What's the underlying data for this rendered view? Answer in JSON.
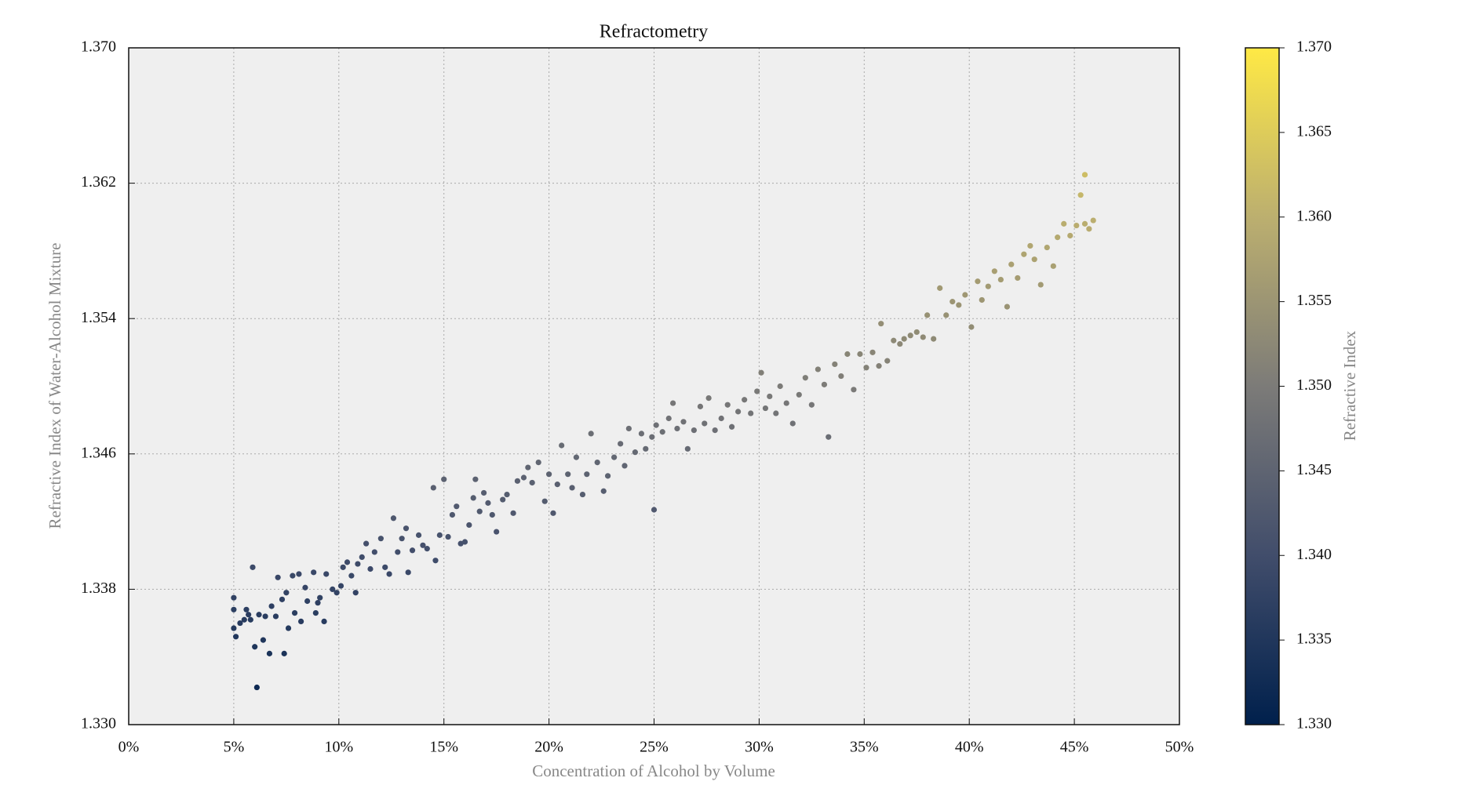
{
  "chart_data": {
    "type": "scatter",
    "title": "Refractometry",
    "x_label": "Concentration of Alcohol by Volume",
    "y_label": "Refractive Index of Water-Alcohol Mixture",
    "colorbar_label": "Refractive Index",
    "colormap": "cividis",
    "color_by": "y",
    "clim": [
      1.33,
      1.37
    ],
    "grid": true,
    "xlim": [
      0,
      50
    ],
    "ylim": [
      1.33,
      1.37
    ],
    "xticks": [
      {
        "value": 0,
        "label": "0%"
      },
      {
        "value": 5,
        "label": "5%"
      },
      {
        "value": 10,
        "label": "10%"
      },
      {
        "value": 15,
        "label": "15%"
      },
      {
        "value": 20,
        "label": "20%"
      },
      {
        "value": 25,
        "label": "25%"
      },
      {
        "value": 30,
        "label": "30%"
      },
      {
        "value": 35,
        "label": "35%"
      },
      {
        "value": 40,
        "label": "40%"
      },
      {
        "value": 45,
        "label": "45%"
      },
      {
        "value": 50,
        "label": "50%"
      }
    ],
    "yticks": [
      {
        "value": 1.33,
        "label": "1.330"
      },
      {
        "value": 1.338,
        "label": "1.338"
      },
      {
        "value": 1.346,
        "label": "1.346"
      },
      {
        "value": 1.354,
        "label": "1.354"
      },
      {
        "value": 1.362,
        "label": "1.362"
      },
      {
        "value": 1.37,
        "label": "1.370"
      }
    ],
    "cticks": [
      {
        "value": 1.33,
        "label": "1.330"
      },
      {
        "value": 1.335,
        "label": "1.335"
      },
      {
        "value": 1.34,
        "label": "1.340"
      },
      {
        "value": 1.345,
        "label": "1.345"
      },
      {
        "value": 1.35,
        "label": "1.350"
      },
      {
        "value": 1.355,
        "label": "1.355"
      },
      {
        "value": 1.36,
        "label": "1.360"
      },
      {
        "value": 1.365,
        "label": "1.365"
      },
      {
        "value": 1.37,
        "label": "1.370"
      }
    ],
    "x": [
      5.0,
      5.0,
      5.0,
      5.1,
      5.3,
      5.5,
      5.6,
      5.7,
      5.8,
      5.9,
      6.0,
      6.1,
      6.2,
      6.4,
      6.5,
      6.7,
      6.8,
      7.0,
      7.1,
      7.3,
      7.4,
      7.5,
      7.6,
      7.8,
      7.9,
      8.1,
      8.2,
      8.4,
      8.5,
      8.8,
      8.9,
      9.0,
      9.1,
      9.3,
      9.4,
      9.7,
      9.9,
      10.1,
      10.2,
      10.4,
      10.6,
      10.8,
      10.9,
      11.1,
      11.3,
      11.5,
      11.7,
      12.0,
      12.2,
      12.4,
      12.6,
      12.8,
      13.0,
      13.2,
      13.3,
      13.5,
      13.8,
      14.0,
      14.2,
      14.5,
      14.6,
      14.8,
      15.0,
      15.2,
      15.4,
      15.6,
      15.8,
      16.0,
      16.2,
      16.4,
      16.5,
      16.7,
      16.9,
      17.1,
      17.3,
      17.5,
      17.8,
      18.0,
      18.3,
      18.5,
      18.8,
      19.0,
      19.2,
      19.5,
      19.8,
      20.0,
      20.2,
      20.4,
      20.6,
      20.9,
      21.1,
      21.3,
      21.6,
      21.8,
      22.0,
      22.3,
      22.6,
      22.8,
      23.1,
      23.4,
      23.6,
      23.8,
      24.1,
      24.4,
      24.6,
      24.9,
      25.1,
      25.0,
      25.4,
      25.7,
      25.9,
      26.1,
      26.4,
      26.6,
      26.9,
      27.2,
      27.4,
      27.6,
      27.9,
      28.2,
      28.5,
      28.7,
      29.0,
      29.3,
      29.6,
      29.9,
      30.1,
      30.3,
      30.5,
      30.8,
      31.0,
      31.3,
      31.6,
      31.9,
      32.2,
      32.5,
      32.8,
      33.1,
      33.3,
      33.6,
      33.9,
      34.2,
      34.5,
      34.8,
      35.1,
      35.4,
      35.7,
      35.8,
      36.1,
      36.4,
      36.7,
      36.9,
      37.2,
      37.5,
      37.8,
      38.0,
      38.3,
      38.6,
      38.9,
      39.2,
      39.5,
      39.8,
      40.1,
      40.4,
      40.6,
      40.9,
      41.2,
      41.5,
      41.8,
      42.0,
      42.3,
      42.6,
      42.9,
      43.1,
      43.4,
      43.7,
      44.0,
      44.2,
      44.5,
      44.8,
      45.1,
      45.3,
      45.5,
      45.5,
      45.7,
      45.9
    ],
    "y": [
      1.3368,
      1.3375,
      1.3357,
      1.3352,
      1.336,
      1.3362,
      1.3368,
      1.3365,
      1.3362,
      1.3393,
      1.3346,
      1.3322,
      1.3365,
      1.335,
      1.3364,
      1.3342,
      1.337,
      1.3364,
      1.3387,
      1.3374,
      1.3342,
      1.3378,
      1.3357,
      1.3388,
      1.3366,
      1.3389,
      1.3361,
      1.3381,
      1.3373,
      1.339,
      1.3366,
      1.3372,
      1.3375,
      1.3361,
      1.3389,
      1.338,
      1.3378,
      1.3382,
      1.3393,
      1.3396,
      1.3388,
      1.3378,
      1.3395,
      1.3399,
      1.3407,
      1.3392,
      1.3402,
      1.341,
      1.3393,
      1.3389,
      1.3422,
      1.3402,
      1.341,
      1.3416,
      1.339,
      1.3403,
      1.3412,
      1.3406,
      1.3404,
      1.344,
      1.3397,
      1.3412,
      1.3445,
      1.3411,
      1.3424,
      1.3429,
      1.3407,
      1.3408,
      1.3418,
      1.3434,
      1.3445,
      1.3426,
      1.3437,
      1.3431,
      1.3424,
      1.3414,
      1.3433,
      1.3436,
      1.3425,
      1.3444,
      1.3446,
      1.3452,
      1.3443,
      1.3455,
      1.3432,
      1.3448,
      1.3425,
      1.3442,
      1.3465,
      1.3448,
      1.344,
      1.3458,
      1.3436,
      1.3448,
      1.3472,
      1.3455,
      1.3438,
      1.3447,
      1.3458,
      1.3466,
      1.3453,
      1.3475,
      1.3461,
      1.3472,
      1.3463,
      1.347,
      1.3477,
      1.3427,
      1.3473,
      1.3481,
      1.349,
      1.3475,
      1.3479,
      1.3463,
      1.3474,
      1.3488,
      1.3478,
      1.3493,
      1.3474,
      1.3481,
      1.3489,
      1.3476,
      1.3485,
      1.3492,
      1.3484,
      1.3497,
      1.3508,
      1.3487,
      1.3494,
      1.3484,
      1.35,
      1.349,
      1.3478,
      1.3495,
      1.3505,
      1.3489,
      1.351,
      1.3501,
      1.347,
      1.3513,
      1.3506,
      1.3519,
      1.3498,
      1.3519,
      1.3511,
      1.352,
      1.3512,
      1.3537,
      1.3515,
      1.3527,
      1.3525,
      1.3528,
      1.353,
      1.3532,
      1.3529,
      1.3542,
      1.3528,
      1.3558,
      1.3542,
      1.355,
      1.3548,
      1.3554,
      1.3535,
      1.3562,
      1.3551,
      1.3559,
      1.3568,
      1.3563,
      1.3547,
      1.3572,
      1.3564,
      1.3578,
      1.3583,
      1.3575,
      1.356,
      1.3582,
      1.3571,
      1.3588,
      1.3596,
      1.3589,
      1.3595,
      1.3613,
      1.3596,
      1.3625,
      1.3593,
      1.3598
    ]
  }
}
